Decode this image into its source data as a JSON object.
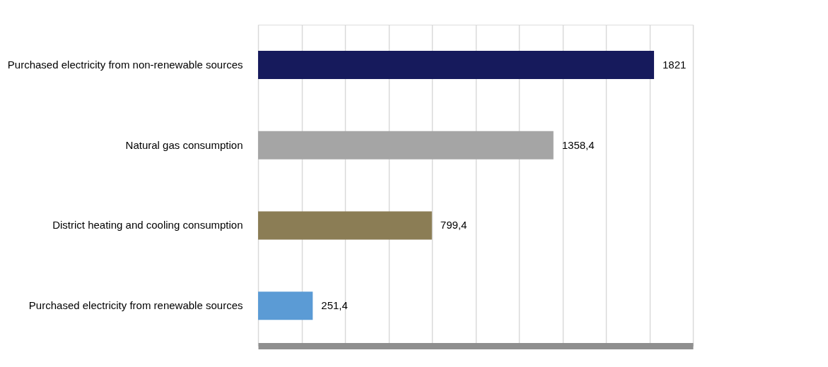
{
  "chart_data": {
    "type": "bar",
    "orientation": "horizontal",
    "categories": [
      "Purchased electricity from non-renewable sources",
      "Natural gas consumption",
      "District heating and cooling consumption",
      "Purchased electricity from renewable sources"
    ],
    "values": [
      1821,
      1358.4,
      799.4,
      251.4
    ],
    "colors": [
      "#161a5c",
      "#a5a5a5",
      "#8b7d55",
      "#5b9bd5"
    ],
    "value_labels": [
      "1821",
      "1358,4",
      "799,4",
      "251,4"
    ],
    "xlim": [
      0,
      2000
    ],
    "xticks": [
      {
        "value": 0,
        "label": null
      },
      {
        "value": 200,
        "label": null
      },
      {
        "value": 400,
        "label": null
      },
      {
        "value": 600,
        "label": null
      },
      {
        "value": 800,
        "label": null
      },
      {
        "value": 1000,
        "label": null
      },
      {
        "value": 1200,
        "label": null
      },
      {
        "value": 1400,
        "label": null
      },
      {
        "value": 1600,
        "label": null
      },
      {
        "value": 1800,
        "label": null
      },
      {
        "value": 2000,
        "label": null
      }
    ],
    "tick_labels": "y",
    "grid": "x"
  }
}
